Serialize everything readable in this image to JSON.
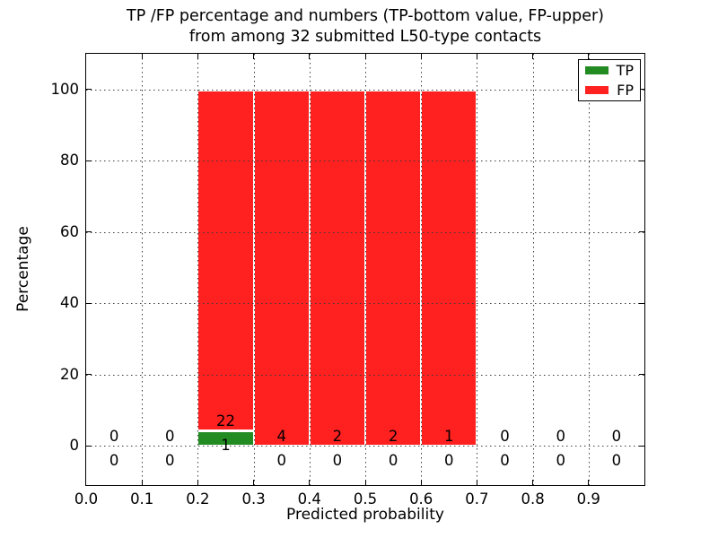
{
  "figure": {
    "title_line1": "TP /FP percentage and numbers (TP-bottom value, FP-upper)",
    "title_line2": "from among 32 submitted L50-type contacts",
    "xlabel": "Predicted probability",
    "ylabel": "Percentage"
  },
  "legend": {
    "items": [
      {
        "label": "TP",
        "color": "#228b22"
      },
      {
        "label": "FP",
        "color": "#ff2020"
      }
    ]
  },
  "chart_data": {
    "type": "bar",
    "stacked": true,
    "title": "TP /FP percentage and numbers (TP-bottom value, FP-upper) from among 32 submitted L50-type contacts",
    "xlabel": "Predicted probability",
    "ylabel": "Percentage",
    "total_contacts": 32,
    "xlim": [
      0.0,
      1.0
    ],
    "ylim": [
      -11,
      110
    ],
    "grid": "dotted",
    "legend_position": "upper right",
    "xticks": [
      "0.0",
      "0.1",
      "0.2",
      "0.3",
      "0.4",
      "0.5",
      "0.6",
      "0.7",
      "0.8",
      "0.9"
    ],
    "yticks": [
      0,
      20,
      40,
      60,
      80,
      100
    ],
    "bin_width": 0.1,
    "bin_centers": [
      0.05,
      0.15,
      0.25,
      0.35,
      0.45,
      0.55,
      0.65,
      0.75,
      0.85,
      0.95
    ],
    "series": [
      {
        "name": "TP",
        "color": "#228b22",
        "counts": [
          0,
          0,
          1,
          0,
          0,
          0,
          0,
          0,
          0,
          0
        ],
        "percent": [
          0,
          0,
          4.35,
          0,
          0,
          0,
          0,
          0,
          0,
          0
        ]
      },
      {
        "name": "FP",
        "color": "#ff2020",
        "counts": [
          0,
          0,
          22,
          4,
          2,
          2,
          1,
          0,
          0,
          0
        ],
        "percent": [
          0,
          0,
          95.65,
          100,
          100,
          100,
          100,
          0,
          0,
          0
        ]
      }
    ]
  }
}
